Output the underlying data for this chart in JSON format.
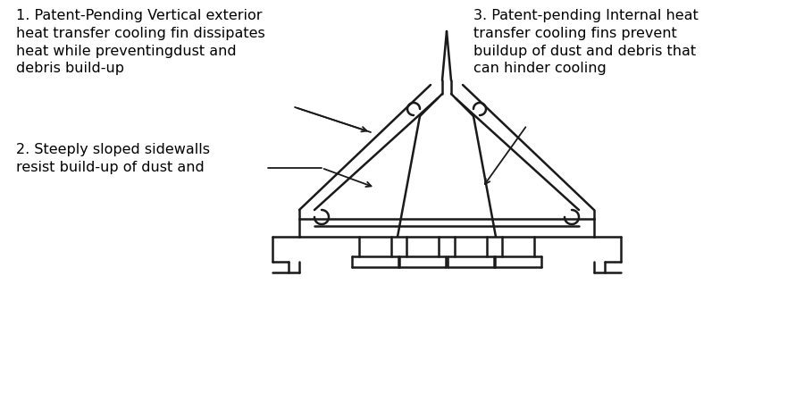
{
  "bg_color": "#ffffff",
  "text_color": "#000000",
  "line_color": "#1a1a1a",
  "annotation1": "1. Patent-Pending Vertical exterior\nheat transfer cooling fin dissipates\nheat while preventingdust and\ndebris build-up",
  "annotation2": "2. Steeply sloped sidewalls\nresist build-up of dust and",
  "annotation3": "3. Patent-pending Internal heat\ntransfer cooling fins prevent\nbuildup of dust and debris that\ncan hinder cooling",
  "fontsize": 11.5,
  "figsize": [
    9.0,
    4.5
  ],
  "dpi": 100
}
